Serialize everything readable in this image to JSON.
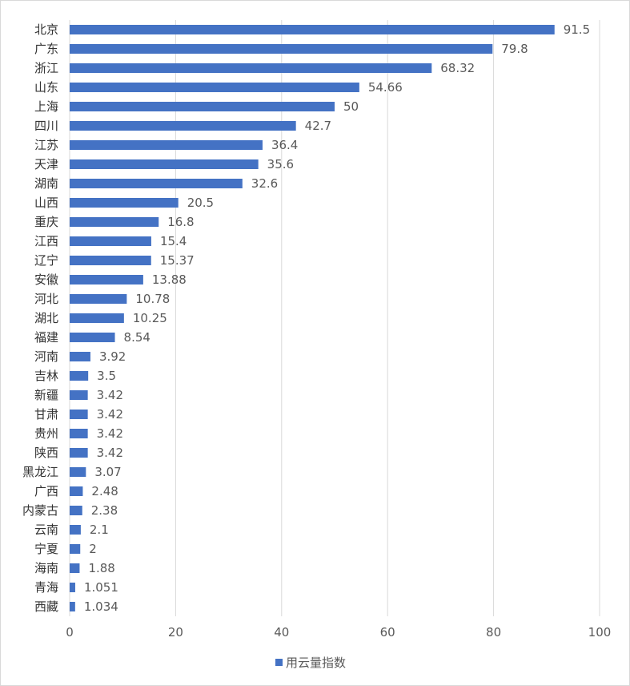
{
  "chart_data": {
    "type": "bar",
    "orientation": "horizontal",
    "categories": [
      "北京",
      "广东",
      "浙江",
      "山东",
      "上海",
      "四川",
      "江苏",
      "天津",
      "湖南",
      "山西",
      "重庆",
      "江西",
      "辽宁",
      "安徽",
      "河北",
      "湖北",
      "福建",
      "河南",
      "吉林",
      "新疆",
      "甘肃",
      "贵州",
      "陕西",
      "黑龙江",
      "广西",
      "内蒙古",
      "云南",
      "宁夏",
      "海南",
      "青海",
      "西藏"
    ],
    "values": [
      91.5,
      79.8,
      68.32,
      54.66,
      50,
      42.7,
      36.4,
      35.6,
      32.6,
      20.5,
      16.8,
      15.4,
      15.37,
      13.88,
      10.78,
      10.25,
      8.54,
      3.92,
      3.5,
      3.42,
      3.42,
      3.42,
      3.42,
      3.07,
      2.48,
      2.38,
      2.1,
      2,
      1.88,
      1.051,
      1.034
    ],
    "value_labels": [
      "91.5",
      "79.8",
      "68.32",
      "54.66",
      "50",
      "42.7",
      "36.4",
      "35.6",
      "32.6",
      "20.5",
      "16.8",
      "15.4",
      "15.37",
      "13.88",
      "10.78",
      "10.25",
      "8.54",
      "3.92",
      "3.5",
      "3.42",
      "3.42",
      "3.42",
      "3.42",
      "3.07",
      "2.48",
      "2.38",
      "2.1",
      "2",
      "1.88",
      "1.051",
      "1.034"
    ],
    "series": [
      {
        "name": "用云量指数",
        "color": "#4472C4"
      }
    ],
    "xlim": [
      0,
      100
    ],
    "xticks": [
      "0",
      "20",
      "40",
      "60",
      "80",
      "100"
    ],
    "grid": true,
    "legend": "bottom",
    "title": "",
    "xlabel": "",
    "ylabel": ""
  }
}
